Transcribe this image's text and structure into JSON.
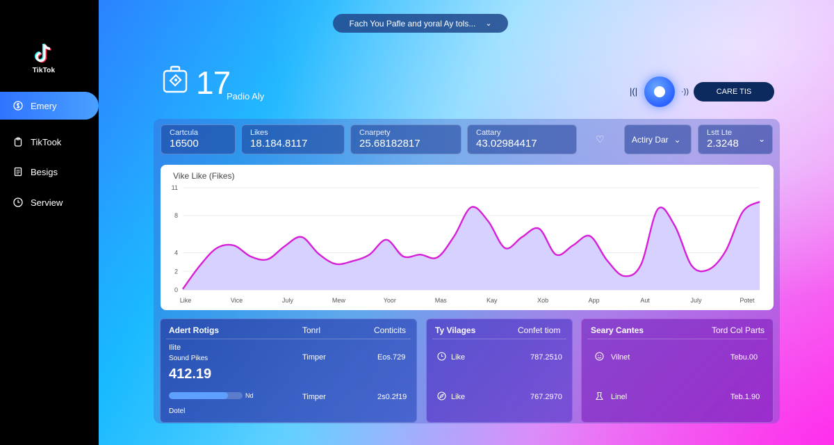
{
  "app": {
    "logo_text": "TikTok"
  },
  "sidebar": {
    "items": [
      {
        "label": "Emery",
        "icon": "dollar-circle-icon",
        "active": true
      },
      {
        "label": "TikTook",
        "icon": "clipboard-icon",
        "active": false
      },
      {
        "label": "Besigs",
        "icon": "document-icon",
        "active": false
      },
      {
        "label": "Serview",
        "icon": "clock-icon",
        "active": false
      }
    ]
  },
  "topbar": {
    "dropdown_label": "Fach You Pafle and yoral Ay tols..."
  },
  "header": {
    "big_number": "17",
    "subtitle": "Padio Aly",
    "cta_label": "CARE TIS"
  },
  "stats": [
    {
      "label": "Cartcula",
      "value": "16500"
    },
    {
      "label": "Likes",
      "value": "18.184.8117"
    },
    {
      "label": "Cnarpety",
      "value": "25.68182817"
    },
    {
      "label": "Cattary",
      "value": "43.02984417"
    }
  ],
  "filters": {
    "activity_label": "Actiry Dar",
    "last_label": "Lstt Lte",
    "last_value": "2.3248"
  },
  "chart_data": {
    "type": "area",
    "title": "Vike Like (Fikes)",
    "yticks": [
      "0",
      "2",
      "4",
      "8",
      "11"
    ],
    "ylim": [
      0,
      11
    ],
    "grid": true,
    "xticks": [
      "Like",
      "Vice",
      "July",
      "Mew",
      "Yoor",
      "Mas",
      "Kay",
      "Xob",
      "App",
      "Aut",
      "July",
      "Potet"
    ],
    "series": [
      {
        "x": [
          0,
          1,
          2,
          3,
          4,
          5,
          6,
          7,
          8,
          9,
          10,
          11,
          12,
          13,
          14,
          15,
          16,
          17,
          18,
          19,
          20,
          21,
          22,
          23,
          24,
          25,
          26,
          27,
          28,
          29,
          30,
          31,
          32,
          33,
          34
        ],
        "values": [
          0.1,
          2.6,
          4.5,
          4.8,
          3.6,
          3.3,
          4.7,
          5.7,
          3.9,
          2.8,
          3.1,
          3.8,
          5.4,
          3.6,
          3.8,
          3.5,
          5.8,
          8.9,
          7.4,
          4.5,
          5.7,
          6.6,
          3.8,
          4.8,
          5.8,
          3.2,
          1.5,
          2.7,
          8.7,
          6.9,
          2.6,
          2.2,
          4.2,
          8.4,
          9.5
        ]
      }
    ],
    "colors": {
      "line": "#d61fd6",
      "fill": "#cfc9ff"
    }
  },
  "cards": {
    "adrt": {
      "title": "Adert Rotigs",
      "col1": "Tonrl",
      "col2": "Conticits",
      "line1": "Ilite",
      "line2": "Sound Pikes",
      "big_value": "412.19",
      "progress_pct": 80,
      "progress_label": "Nd",
      "footer": "Dotel",
      "rows": [
        {
          "label": "Timper",
          "value": "Eos.729"
        },
        {
          "label": "Timper",
          "value": "2s0.2f19"
        }
      ]
    },
    "villages": {
      "title": "Ty Vilages",
      "header_right": "Confet tiom",
      "rows": [
        {
          "icon": "clock-icon",
          "label": "Like",
          "value": "787.2510"
        },
        {
          "icon": "compass-icon",
          "label": "Like",
          "value": "767.2970"
        }
      ]
    },
    "seary": {
      "title": "Seary Cantes",
      "header_right": "Tord Col Parts",
      "rows": [
        {
          "icon": "smile-icon",
          "label": "Vilnet",
          "value": "Tebu.00"
        },
        {
          "icon": "person-icon",
          "label": "Linel",
          "value": "Teb.1.90"
        }
      ]
    }
  }
}
